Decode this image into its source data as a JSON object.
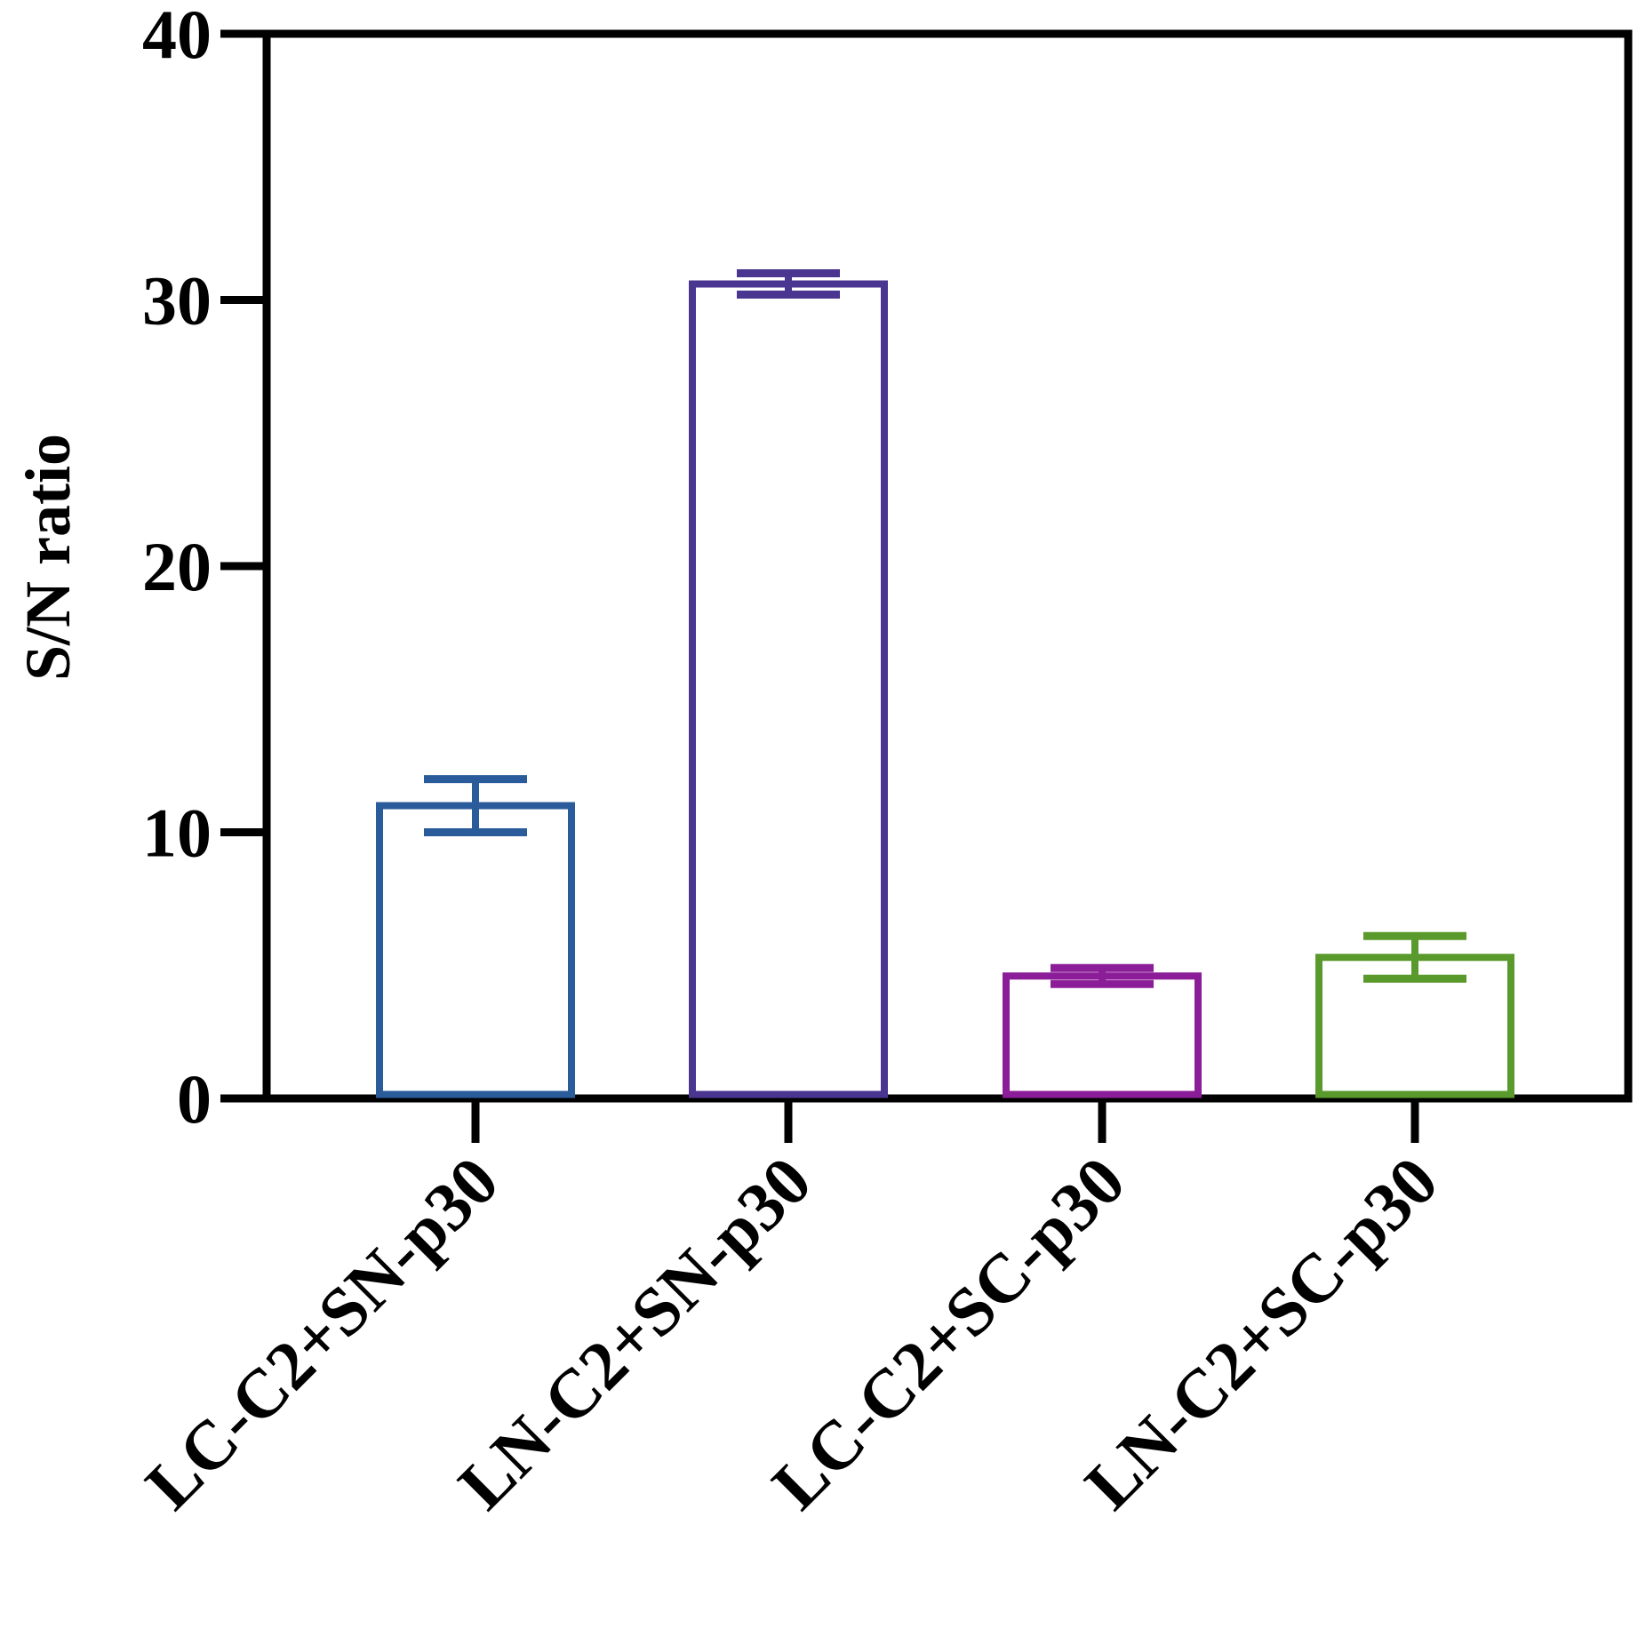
{
  "chart_data": {
    "type": "bar",
    "title": "",
    "xlabel": "",
    "ylabel": "S/N ratio",
    "ylim": [
      0,
      40
    ],
    "yticks": [
      "0",
      "10",
      "20",
      "30",
      "40"
    ],
    "categories": [
      "LC-C2+SN-p30",
      "LN-C2+SN-p30",
      "LC-C2+SC-p30",
      "LN-C2+SC-p30"
    ],
    "values": [
      11.0,
      30.6,
      4.6,
      5.3
    ],
    "errors": [
      1.0,
      0.4,
      0.3,
      0.8
    ],
    "colors": [
      "#2a5b9a",
      "#4a3591",
      "#8c1d98",
      "#5a9a2d"
    ],
    "bar_style": "outline",
    "grid": false,
    "legend": "none"
  }
}
